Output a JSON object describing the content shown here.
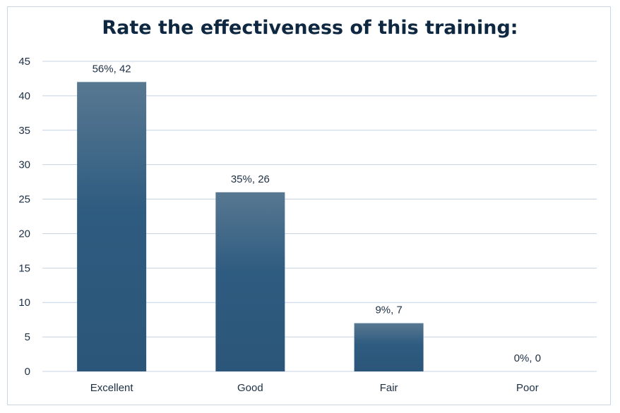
{
  "chart_data": {
    "type": "bar",
    "title": "Rate the effectiveness of this training:",
    "categories": [
      "Excellent",
      "Good",
      "Fair",
      "Poor"
    ],
    "values": [
      42,
      26,
      7,
      0
    ],
    "data_labels": [
      "56%, 42",
      "35%, 26",
      "9%, 7",
      "0%, 0"
    ],
    "ylim": [
      0,
      45
    ],
    "yticks": [
      0,
      5,
      10,
      15,
      20,
      25,
      30,
      35,
      40,
      45
    ],
    "xlabel": "",
    "ylabel": "",
    "grid": true,
    "legend": "none",
    "colors": {
      "bar_top": "#587891",
      "bar_bottom": "#2b5679",
      "grid": "#c5d3e3",
      "text": "#1d2f44",
      "title": "#0e2841"
    }
  }
}
